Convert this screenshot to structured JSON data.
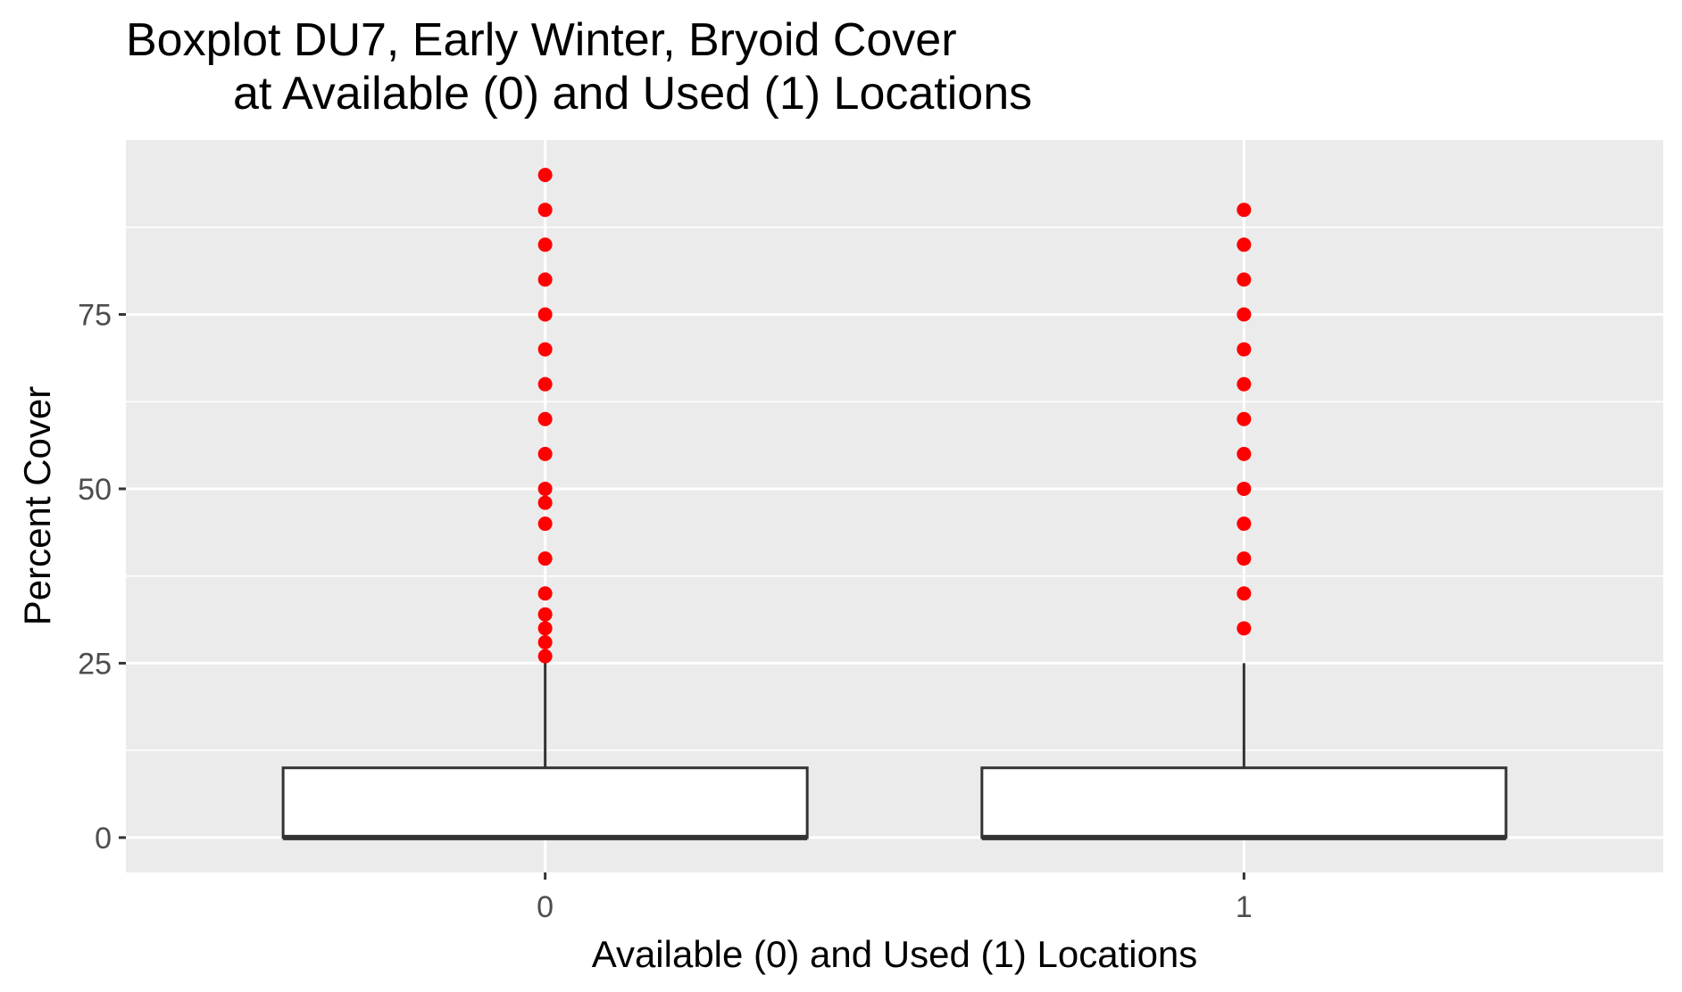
{
  "chart_data": {
    "type": "boxplot",
    "title_lines": [
      "Boxplot DU7, Early Winter, Bryoid Cover",
      "at Available (0) and Used (1) Locations"
    ],
    "xlabel": "Available (0) and Used (1) Locations",
    "ylabel": "Percent Cover",
    "categories": [
      "0",
      "1"
    ],
    "y_ticks": [
      0,
      25,
      50,
      75
    ],
    "y_tick_labels": [
      "0",
      "25",
      "50",
      "75"
    ],
    "ylim": [
      -5,
      100
    ],
    "grid": true,
    "colors": {
      "panel_background": "#ebebeb",
      "grid": "#ffffff",
      "box_fill": "#ffffff",
      "box_stroke": "#333333",
      "outlier": "#ff0000"
    },
    "boxes": [
      {
        "category": "0",
        "min": 0,
        "q1": 0,
        "median": 0,
        "q3": 10,
        "max": 25,
        "outliers": [
          26,
          28,
          30,
          32,
          35,
          40,
          45,
          48,
          50,
          55,
          60,
          65,
          70,
          75,
          80,
          85,
          90,
          95
        ]
      },
      {
        "category": "1",
        "min": 0,
        "q1": 0,
        "median": 0,
        "q3": 10,
        "max": 25,
        "outliers": [
          30,
          35,
          40,
          45,
          50,
          55,
          60,
          65,
          70,
          75,
          80,
          85,
          90
        ]
      }
    ]
  }
}
